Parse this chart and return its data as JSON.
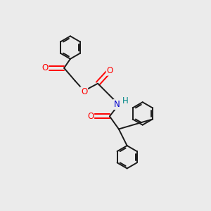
{
  "background_color": "#ebebeb",
  "bond_color": "#1a1a1a",
  "atom_colors": {
    "O": "#ff0000",
    "N": "#0000cc",
    "H": "#008888",
    "C": "#1a1a1a"
  },
  "figsize": [
    3.0,
    3.0
  ],
  "dpi": 100,
  "lw": 1.4,
  "fs": 8.5
}
